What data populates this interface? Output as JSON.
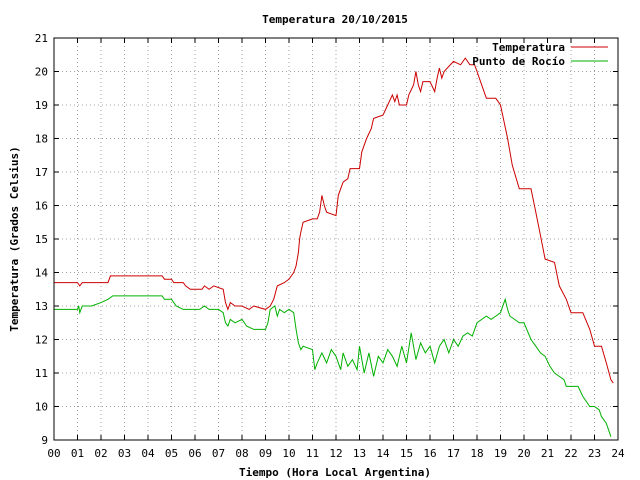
{
  "chart_data": {
    "type": "line",
    "title": "Temperatura 20/10/2015",
    "xlabel": "Tiempo (Hora Local Argentina)",
    "ylabel": "Temperatura (Grados Celsius)",
    "xlim": [
      0,
      24
    ],
    "ylim": [
      9,
      21
    ],
    "x_ticks": [
      "00",
      "01",
      "02",
      "03",
      "04",
      "05",
      "06",
      "07",
      "08",
      "09",
      "10",
      "11",
      "12",
      "13",
      "14",
      "15",
      "16",
      "17",
      "18",
      "19",
      "20",
      "21",
      "22",
      "23",
      "24"
    ],
    "y_ticks": [
      "9",
      "10",
      "11",
      "12",
      "13",
      "14",
      "15",
      "16",
      "17",
      "18",
      "19",
      "20",
      "21"
    ],
    "grid": true,
    "legend_position": "top-right",
    "series": [
      {
        "name": "Temperatura",
        "color": "#cc0000",
        "points": [
          [
            0.0,
            13.7
          ],
          [
            1.0,
            13.7
          ],
          [
            1.1,
            13.6
          ],
          [
            1.2,
            13.7
          ],
          [
            2.3,
            13.7
          ],
          [
            2.4,
            13.9
          ],
          [
            3.0,
            13.9
          ],
          [
            4.0,
            13.9
          ],
          [
            4.6,
            13.9
          ],
          [
            4.7,
            13.8
          ],
          [
            5.0,
            13.8
          ],
          [
            5.1,
            13.7
          ],
          [
            5.5,
            13.7
          ],
          [
            5.6,
            13.6
          ],
          [
            5.8,
            13.5
          ],
          [
            6.3,
            13.5
          ],
          [
            6.4,
            13.6
          ],
          [
            6.6,
            13.5
          ],
          [
            6.8,
            13.6
          ],
          [
            7.2,
            13.5
          ],
          [
            7.3,
            13.1
          ],
          [
            7.4,
            12.9
          ],
          [
            7.5,
            13.1
          ],
          [
            7.7,
            13.0
          ],
          [
            8.0,
            13.0
          ],
          [
            8.3,
            12.9
          ],
          [
            8.5,
            13.0
          ],
          [
            9.0,
            12.9
          ],
          [
            9.2,
            13.0
          ],
          [
            9.35,
            13.2
          ],
          [
            9.5,
            13.6
          ],
          [
            9.8,
            13.7
          ],
          [
            10.0,
            13.8
          ],
          [
            10.2,
            14.0
          ],
          [
            10.3,
            14.2
          ],
          [
            10.4,
            14.6
          ],
          [
            10.45,
            15.0
          ],
          [
            10.5,
            15.2
          ],
          [
            10.6,
            15.5
          ],
          [
            11.0,
            15.6
          ],
          [
            11.2,
            15.6
          ],
          [
            11.3,
            15.8
          ],
          [
            11.4,
            16.3
          ],
          [
            11.5,
            16.0
          ],
          [
            11.6,
            15.8
          ],
          [
            12.0,
            15.7
          ],
          [
            12.1,
            16.3
          ],
          [
            12.3,
            16.7
          ],
          [
            12.5,
            16.8
          ],
          [
            12.6,
            17.1
          ],
          [
            13.0,
            17.1
          ],
          [
            13.1,
            17.6
          ],
          [
            13.3,
            18.0
          ],
          [
            13.5,
            18.3
          ],
          [
            13.6,
            18.6
          ],
          [
            14.0,
            18.7
          ],
          [
            14.2,
            19.0
          ],
          [
            14.4,
            19.3
          ],
          [
            14.5,
            19.1
          ],
          [
            14.6,
            19.3
          ],
          [
            14.7,
            19.0
          ],
          [
            15.0,
            19.0
          ],
          [
            15.1,
            19.3
          ],
          [
            15.3,
            19.6
          ],
          [
            15.4,
            20.0
          ],
          [
            15.5,
            19.6
          ],
          [
            15.6,
            19.4
          ],
          [
            15.7,
            19.7
          ],
          [
            16.0,
            19.7
          ],
          [
            16.2,
            19.4
          ],
          [
            16.3,
            19.8
          ],
          [
            16.4,
            20.1
          ],
          [
            16.5,
            19.8
          ],
          [
            16.6,
            20.0
          ],
          [
            17.0,
            20.3
          ],
          [
            17.3,
            20.2
          ],
          [
            17.5,
            20.4
          ],
          [
            17.7,
            20.2
          ],
          [
            17.9,
            20.2
          ],
          [
            18.0,
            20.0
          ],
          [
            18.2,
            19.6
          ],
          [
            18.4,
            19.2
          ],
          [
            18.8,
            19.2
          ],
          [
            19.0,
            19.0
          ],
          [
            19.3,
            18.0
          ],
          [
            19.5,
            17.2
          ],
          [
            19.8,
            16.5
          ],
          [
            20.3,
            16.5
          ],
          [
            20.5,
            15.8
          ],
          [
            20.7,
            15.1
          ],
          [
            20.9,
            14.4
          ],
          [
            21.3,
            14.3
          ],
          [
            21.5,
            13.6
          ],
          [
            21.8,
            13.2
          ],
          [
            22.0,
            12.8
          ],
          [
            22.5,
            12.8
          ],
          [
            22.8,
            12.3
          ],
          [
            23.0,
            11.8
          ],
          [
            23.3,
            11.8
          ],
          [
            23.5,
            11.3
          ],
          [
            23.7,
            10.8
          ],
          [
            23.8,
            10.7
          ]
        ]
      },
      {
        "name": "Punto de Rocío",
        "color": "#00b000",
        "points": [
          [
            0.0,
            12.9
          ],
          [
            1.0,
            12.9
          ],
          [
            1.05,
            13.0
          ],
          [
            1.1,
            12.8
          ],
          [
            1.2,
            13.0
          ],
          [
            1.6,
            13.0
          ],
          [
            2.0,
            13.1
          ],
          [
            2.3,
            13.2
          ],
          [
            2.5,
            13.3
          ],
          [
            3.0,
            13.3
          ],
          [
            4.0,
            13.3
          ],
          [
            4.6,
            13.3
          ],
          [
            4.7,
            13.2
          ],
          [
            5.0,
            13.2
          ],
          [
            5.2,
            13.0
          ],
          [
            5.5,
            12.9
          ],
          [
            6.0,
            12.9
          ],
          [
            6.2,
            12.9
          ],
          [
            6.4,
            13.0
          ],
          [
            6.6,
            12.9
          ],
          [
            7.0,
            12.9
          ],
          [
            7.2,
            12.8
          ],
          [
            7.3,
            12.5
          ],
          [
            7.4,
            12.4
          ],
          [
            7.5,
            12.6
          ],
          [
            7.7,
            12.5
          ],
          [
            8.0,
            12.6
          ],
          [
            8.2,
            12.4
          ],
          [
            8.5,
            12.3
          ],
          [
            9.0,
            12.3
          ],
          [
            9.1,
            12.5
          ],
          [
            9.2,
            12.9
          ],
          [
            9.4,
            13.0
          ],
          [
            9.5,
            12.7
          ],
          [
            9.6,
            12.9
          ],
          [
            9.8,
            12.8
          ],
          [
            10.0,
            12.9
          ],
          [
            10.2,
            12.8
          ],
          [
            10.3,
            12.3
          ],
          [
            10.4,
            11.9
          ],
          [
            10.5,
            11.7
          ],
          [
            10.6,
            11.8
          ],
          [
            11.0,
            11.7
          ],
          [
            11.1,
            11.1
          ],
          [
            11.2,
            11.3
          ],
          [
            11.4,
            11.6
          ],
          [
            11.6,
            11.3
          ],
          [
            11.8,
            11.7
          ],
          [
            12.0,
            11.5
          ],
          [
            12.2,
            11.1
          ],
          [
            12.3,
            11.6
          ],
          [
            12.5,
            11.2
          ],
          [
            12.7,
            11.4
          ],
          [
            12.9,
            11.1
          ],
          [
            13.0,
            11.8
          ],
          [
            13.2,
            11.0
          ],
          [
            13.4,
            11.6
          ],
          [
            13.6,
            10.9
          ],
          [
            13.8,
            11.5
          ],
          [
            14.0,
            11.3
          ],
          [
            14.2,
            11.7
          ],
          [
            14.4,
            11.5
          ],
          [
            14.6,
            11.2
          ],
          [
            14.8,
            11.8
          ],
          [
            15.0,
            11.3
          ],
          [
            15.2,
            12.2
          ],
          [
            15.4,
            11.4
          ],
          [
            15.6,
            11.9
          ],
          [
            15.8,
            11.6
          ],
          [
            16.0,
            11.8
          ],
          [
            16.2,
            11.3
          ],
          [
            16.4,
            11.8
          ],
          [
            16.6,
            12.0
          ],
          [
            16.8,
            11.6
          ],
          [
            17.0,
            12.0
          ],
          [
            17.2,
            11.8
          ],
          [
            17.4,
            12.1
          ],
          [
            17.6,
            12.2
          ],
          [
            17.8,
            12.1
          ],
          [
            18.0,
            12.5
          ],
          [
            18.2,
            12.6
          ],
          [
            18.4,
            12.7
          ],
          [
            18.6,
            12.6
          ],
          [
            18.8,
            12.7
          ],
          [
            19.0,
            12.8
          ],
          [
            19.2,
            13.2
          ],
          [
            19.3,
            12.9
          ],
          [
            19.4,
            12.7
          ],
          [
            19.6,
            12.6
          ],
          [
            19.8,
            12.5
          ],
          [
            20.0,
            12.5
          ],
          [
            20.3,
            12.0
          ],
          [
            20.5,
            11.8
          ],
          [
            20.7,
            11.6
          ],
          [
            20.9,
            11.5
          ],
          [
            21.1,
            11.2
          ],
          [
            21.3,
            11.0
          ],
          [
            21.5,
            10.9
          ],
          [
            21.7,
            10.8
          ],
          [
            21.8,
            10.6
          ],
          [
            22.0,
            10.6
          ],
          [
            22.3,
            10.6
          ],
          [
            22.5,
            10.3
          ],
          [
            22.8,
            10.0
          ],
          [
            23.0,
            10.0
          ],
          [
            23.2,
            9.9
          ],
          [
            23.3,
            9.7
          ],
          [
            23.5,
            9.5
          ],
          [
            23.6,
            9.3
          ],
          [
            23.7,
            9.1
          ]
        ]
      }
    ]
  }
}
